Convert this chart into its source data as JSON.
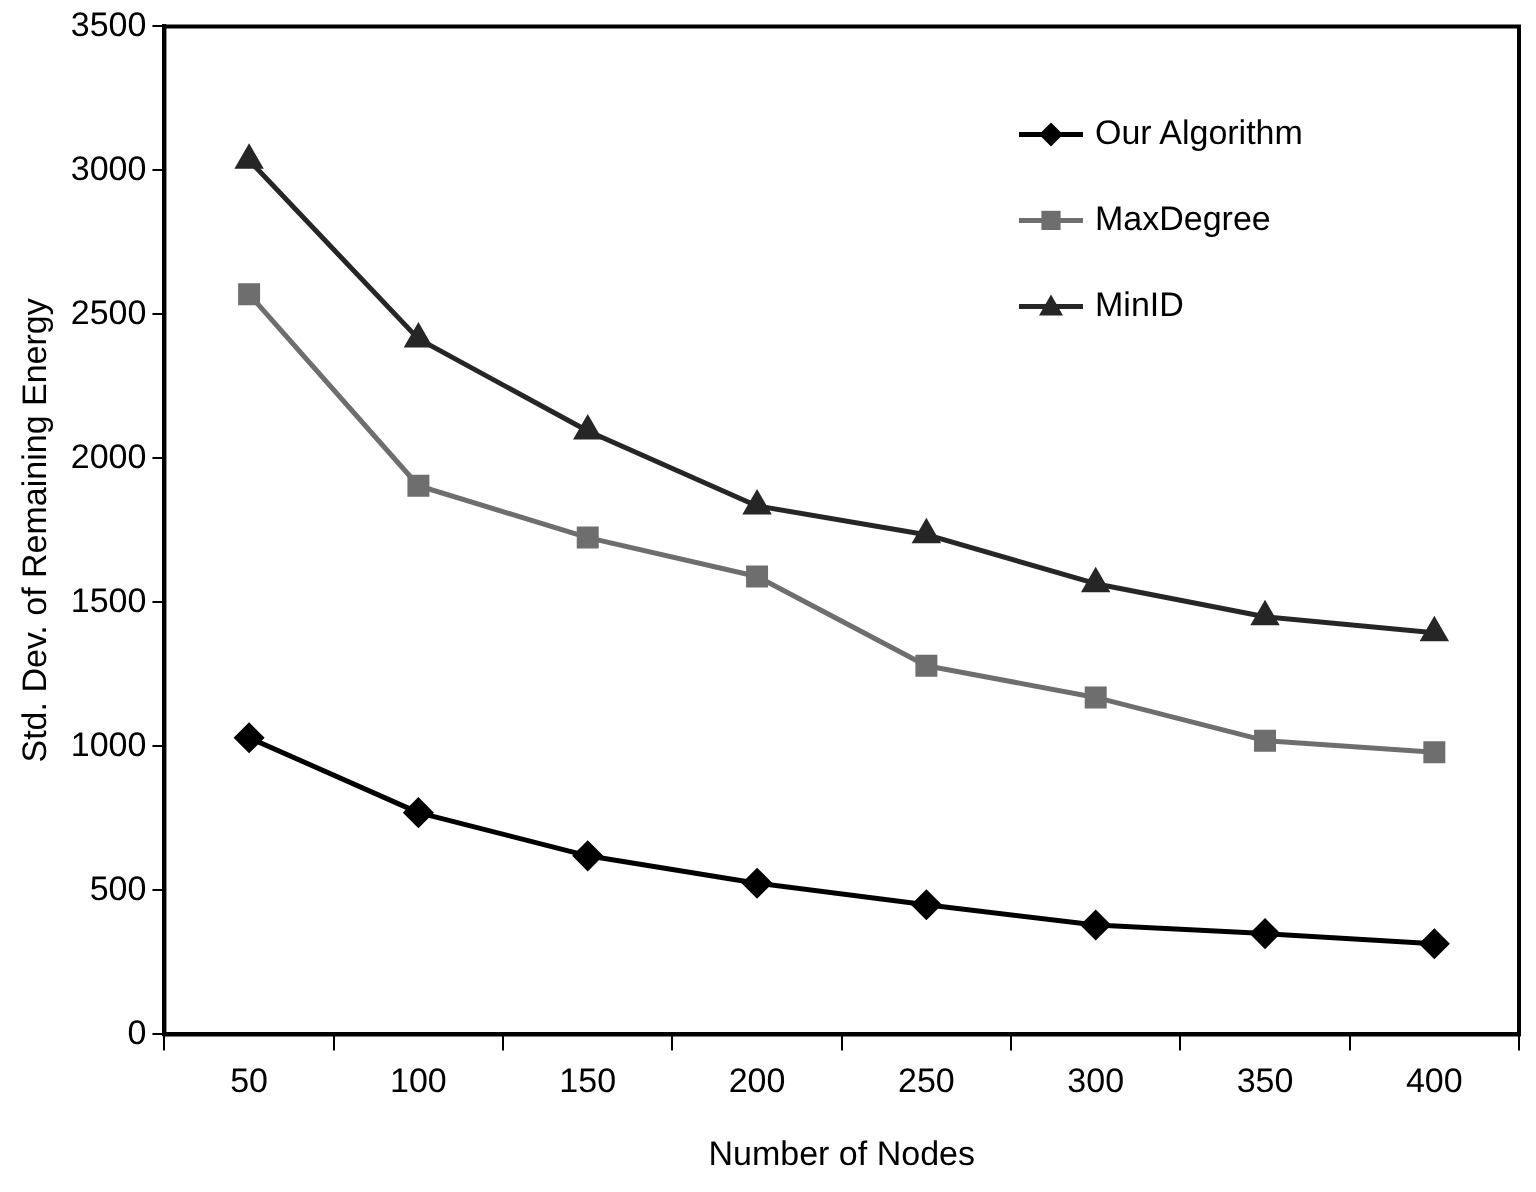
{
  "chart_data": {
    "type": "line",
    "xlabel": "Number of Nodes",
    "ylabel": "Std. Dev. of Remaining Energy",
    "categories": [
      "50",
      "100",
      "150",
      "200",
      "250",
      "300",
      "350",
      "400"
    ],
    "series": [
      {
        "name": "Our Algorithm",
        "color": "#000000",
        "marker": "diamond",
        "values": [
          1030,
          770,
          620,
          525,
          450,
          380,
          350,
          315
        ]
      },
      {
        "name": "MaxDegree",
        "color": "#6e6e6e",
        "marker": "square",
        "values": [
          2570,
          1905,
          1725,
          1590,
          1280,
          1170,
          1020,
          980
        ]
      },
      {
        "name": "MinID",
        "color": "#262626",
        "marker": "triangle",
        "values": [
          3035,
          2415,
          2095,
          1835,
          1735,
          1565,
          1450,
          1395
        ]
      }
    ],
    "ylim": [
      0,
      3500
    ],
    "yticks": [
      0,
      500,
      1000,
      1500,
      2000,
      2500,
      3000,
      3500
    ],
    "grid": false,
    "legend": "top right",
    "line_style": "solid"
  }
}
